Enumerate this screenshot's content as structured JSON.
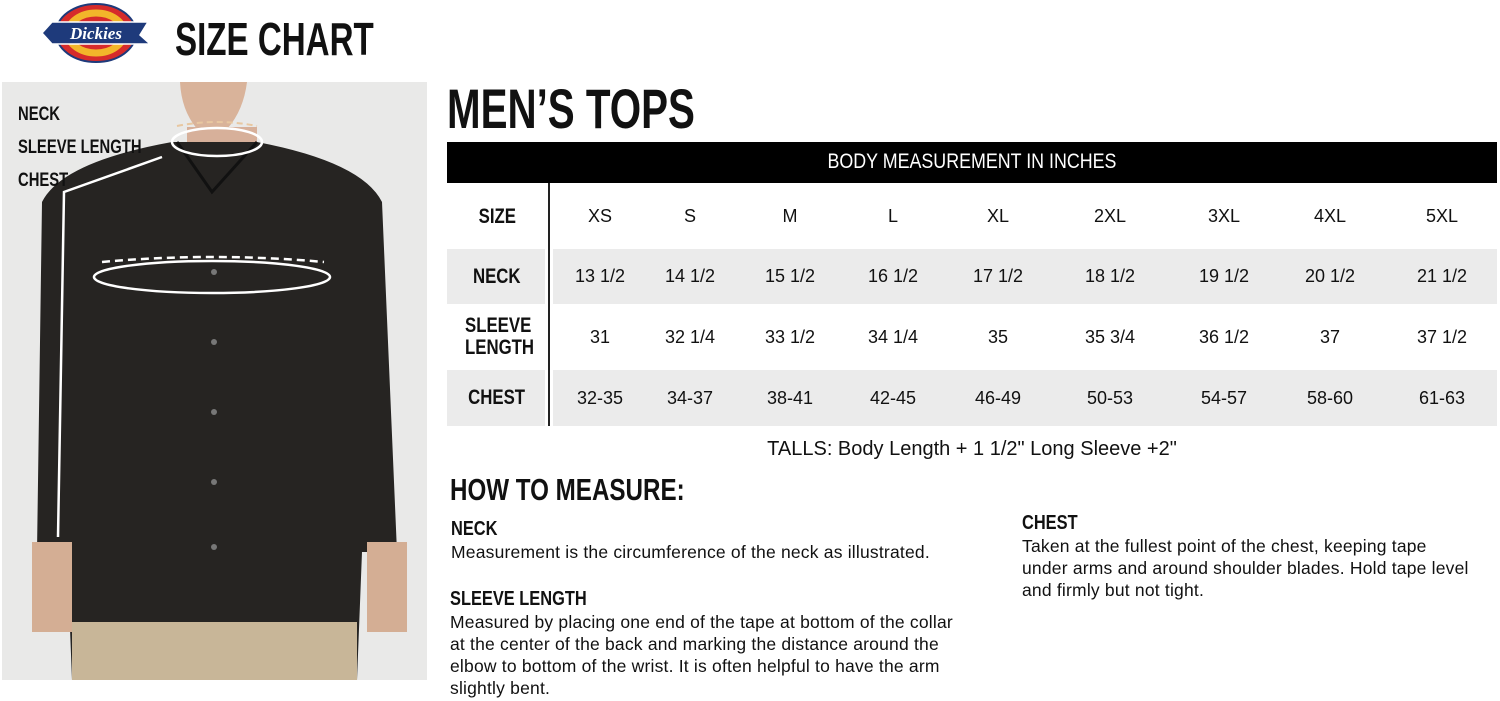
{
  "brand": {
    "logo_text": "Dickies",
    "colors": {
      "red": "#d62b2b",
      "yellow": "#f2b62a",
      "blue": "#1e3a7b"
    }
  },
  "title": "SIZE CHART",
  "photo_labels": [
    "NECK",
    "SLEEVE LENGTH",
    "CHEST"
  ],
  "section_title": "MEN’S TOPS",
  "table": {
    "header": "BODY MEASUREMENT IN INCHES",
    "rows": [
      {
        "label": "SIZE",
        "values": [
          "XS",
          "S",
          "M",
          "L",
          "XL",
          "2XL",
          "3XL",
          "4XL",
          "5XL"
        ]
      },
      {
        "label": "NECK",
        "values": [
          "13 1/2",
          "14 1/2",
          "15 1/2",
          "16 1/2",
          "17 1/2",
          "18 1/2",
          "19 1/2",
          "20 1/2",
          "21 1/2"
        ]
      },
      {
        "label": "SLEEVE LENGTH",
        "values": [
          "31",
          "32 1/4",
          "33 1/2",
          "34 1/4",
          "35",
          "35 3/4",
          "36 1/2",
          "37",
          "37 1/2"
        ]
      },
      {
        "label": "CHEST",
        "values": [
          "32-35",
          "34-37",
          "38-41",
          "42-45",
          "46-49",
          "50-53",
          "54-57",
          "58-60",
          "61-63"
        ]
      }
    ],
    "note": "TALLS: Body Length + 1 1/2\" Long Sleeve +2\""
  },
  "how_to": {
    "title": "HOW TO MEASURE:",
    "items": [
      {
        "heading": "NECK",
        "text": "Measurement is the circumference of the neck as illustrated."
      },
      {
        "heading": "SLEEVE LENGTH",
        "text": "Measured by placing one end of the tape at bottom of the collar at the center of the back and marking the distance around the elbow to bottom of the wrist. It is often helpful to have the arm slightly bent."
      },
      {
        "heading": "CHEST",
        "text": "Taken at the fullest point of the chest, keeping tape under arms and around shoulder blades. Hold tape level and firmly but not tight."
      }
    ]
  }
}
